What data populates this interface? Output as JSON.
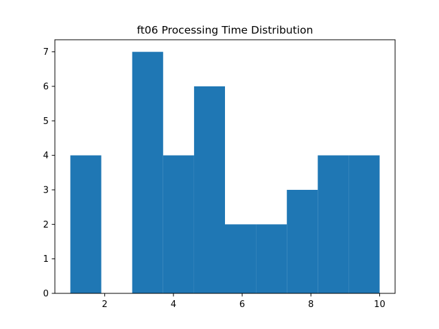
{
  "chart_data": {
    "type": "bar",
    "title": "ft06 Processing Time Distribution",
    "xlabel": "",
    "ylabel": "",
    "bins": [
      {
        "start": 1.0,
        "end": 1.9,
        "count": 4
      },
      {
        "start": 1.9,
        "end": 2.8,
        "count": 0
      },
      {
        "start": 2.8,
        "end": 3.7,
        "count": 7
      },
      {
        "start": 3.7,
        "end": 4.6,
        "count": 4
      },
      {
        "start": 4.6,
        "end": 5.5,
        "count": 6
      },
      {
        "start": 5.5,
        "end": 6.4,
        "count": 2
      },
      {
        "start": 6.4,
        "end": 7.3,
        "count": 2
      },
      {
        "start": 7.3,
        "end": 8.2,
        "count": 3
      },
      {
        "start": 8.2,
        "end": 9.1,
        "count": 4
      },
      {
        "start": 9.1,
        "end": 10.0,
        "count": 4
      }
    ],
    "xlim": [
      0.55,
      10.45
    ],
    "ylim": [
      0,
      7.35
    ],
    "xticks": [
      2,
      4,
      6,
      8,
      10
    ],
    "yticks": [
      0,
      1,
      2,
      3,
      4,
      5,
      6,
      7
    ],
    "grid": false,
    "bar_color": "#1f77b4"
  }
}
